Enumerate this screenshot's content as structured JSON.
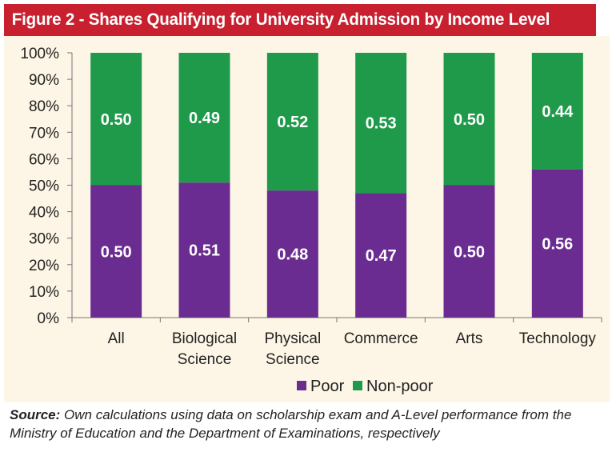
{
  "title": "Figure 2 - Shares Qualifying for University Admission by Income Level",
  "source_label": "Source:",
  "source_text": "Own calculations using data on scholarship exam and A-Level performance from the Ministry of Education and the Department of Examinations, respectively",
  "colors": {
    "poor": "#6a2c91",
    "nonpoor": "#1f9a4a",
    "title_bg": "#c8202f",
    "plot_bg": "#fdf6e6"
  },
  "chart_data": {
    "type": "bar",
    "stacked": true,
    "categories": [
      [
        "All"
      ],
      [
        "Biological",
        "Science"
      ],
      [
        "Physical",
        "Science"
      ],
      [
        "Commerce"
      ],
      [
        "Arts"
      ],
      [
        "Technology"
      ]
    ],
    "series": [
      {
        "name": "Poor",
        "values": [
          0.5,
          0.51,
          0.48,
          0.47,
          0.5,
          0.56
        ],
        "labels": [
          "0.50",
          "0.51",
          "0.48",
          "0.47",
          "0.50",
          "0.56"
        ]
      },
      {
        "name": "Non-poor",
        "values": [
          0.5,
          0.49,
          0.52,
          0.53,
          0.5,
          0.44
        ],
        "labels": [
          "0.50",
          "0.49",
          "0.52",
          "0.53",
          "0.50",
          "0.44"
        ]
      }
    ],
    "y_ticks": [
      "0%",
      "10%",
      "20%",
      "30%",
      "40%",
      "50%",
      "60%",
      "70%",
      "80%",
      "90%",
      "100%"
    ],
    "ylim": [
      0,
      1
    ],
    "grid": false,
    "legend": "bottom"
  }
}
